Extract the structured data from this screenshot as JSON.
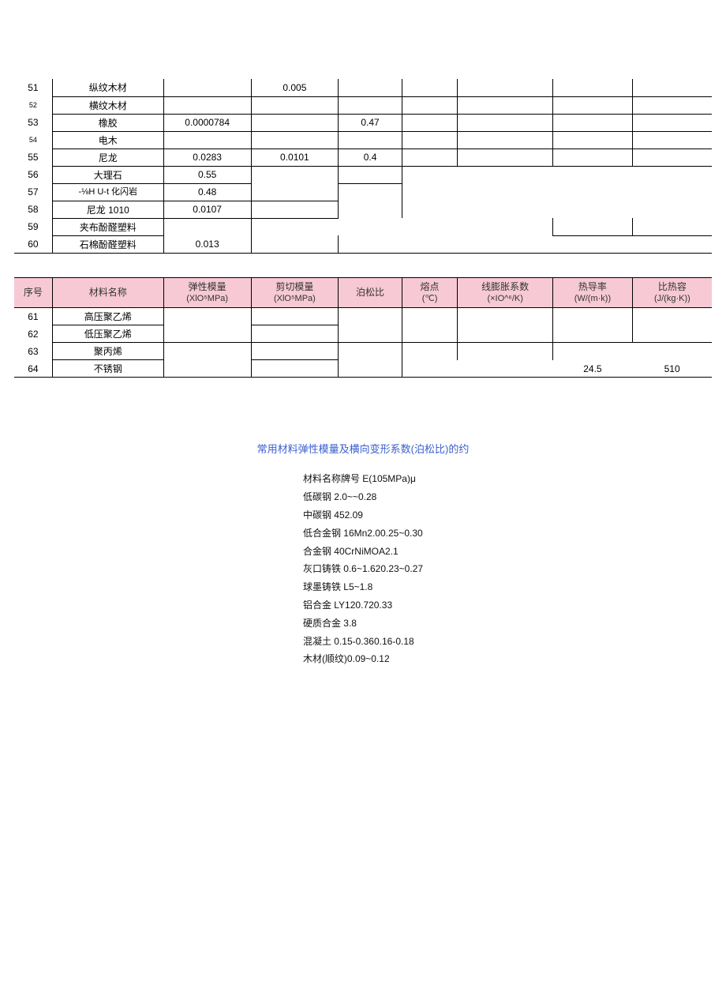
{
  "colors": {
    "header_bg": "#f6c9d4",
    "border": "#000000",
    "page_bg": "#ffffff",
    "title_color": "#3a5fcd"
  },
  "table1": {
    "rows": [
      {
        "idx": "51",
        "name": "纵纹木材",
        "e": "",
        "g": "0.005",
        "pr": "",
        "mp": "",
        "cte": "",
        "tc": "",
        "shc": ""
      },
      {
        "idx": "52",
        "name": "横纹木材",
        "e": "",
        "g": "",
        "pr": "",
        "mp": "",
        "cte": "",
        "tc": "",
        "shc": ""
      },
      {
        "idx": "53",
        "name": "橡胶",
        "e": "0.0000784",
        "g": "",
        "pr": "0.47",
        "mp": "",
        "cte": "",
        "tc": "",
        "shc": ""
      },
      {
        "idx": "54",
        "name": "电木",
        "e": "",
        "g": "",
        "pr": "",
        "mp": "",
        "cte": "",
        "tc": "",
        "shc": ""
      },
      {
        "idx": "55",
        "name": "尼龙",
        "e": "0.0283",
        "g": "0.0101",
        "pr": "0.4",
        "mp": "",
        "cte": "",
        "tc": "",
        "shc": ""
      },
      {
        "idx": "56",
        "name": "大理石",
        "e": "0.55",
        "g": "",
        "pr": "",
        "mp": "",
        "cte": "",
        "tc": "",
        "shc": ""
      },
      {
        "idx": "57",
        "name": "-⅛H U-t 化闪岩",
        "e": "0.48",
        "g": "",
        "pr": "",
        "mp": "",
        "cte": "",
        "tc": "",
        "shc": ""
      },
      {
        "idx": "58",
        "name": "尼龙 1010",
        "e": "0.0107",
        "g": "",
        "pr": "",
        "mp": "",
        "cte": "",
        "tc": "",
        "shc": ""
      },
      {
        "idx": "59",
        "name": "夹布酚醛塑料",
        "e": "",
        "g": "",
        "pr": "",
        "mp": "",
        "cte": "",
        "tc": "",
        "shc": ""
      },
      {
        "idx": "60",
        "name": "石棉酚醛塑料",
        "e": "0.013",
        "g": "",
        "pr": "",
        "mp": "",
        "cte": "",
        "tc": "",
        "shc": ""
      }
    ]
  },
  "table2": {
    "headers": {
      "idx": {
        "l1": "序号",
        "l2": ""
      },
      "name": {
        "l1": "材料名称",
        "l2": ""
      },
      "e": {
        "l1": "弹性模量",
        "l2": "(XlO⁵MPa)"
      },
      "g": {
        "l1": "剪切模量",
        "l2": "(XlO⁵MPa)"
      },
      "pr": {
        "l1": "泊松比",
        "l2": ""
      },
      "mp": {
        "l1": "熔点",
        "l2": "(℃)"
      },
      "cte": {
        "l1": "线膨胀系数",
        "l2": "(×IO^⁶/K)"
      },
      "tc": {
        "l1": "热导率",
        "l2": "(W/(m·k))"
      },
      "shc": {
        "l1": "比热容",
        "l2": "(J/(kg·K))"
      }
    },
    "rows": [
      {
        "idx": "61",
        "name": "高压聚乙烯",
        "e": "",
        "g": "",
        "pr": "",
        "mp": "",
        "cte": "",
        "tc": "",
        "shc": ""
      },
      {
        "idx": "62",
        "name": "低压聚乙烯",
        "e": "",
        "g": "",
        "pr": "",
        "mp": "",
        "cte": "",
        "tc": "",
        "shc": ""
      },
      {
        "idx": "63",
        "name": "聚丙烯",
        "e": "",
        "g": "",
        "pr": "",
        "mp": "",
        "cte": "",
        "tc": "",
        "shc": ""
      },
      {
        "idx": "64",
        "name": "不锈钢",
        "e": "",
        "g": "",
        "pr": "",
        "mp": "",
        "cte": "",
        "tc": "24.5",
        "shc": "510"
      }
    ]
  },
  "section2": {
    "title": "常用材料弹性模量及横向变形系数(泊松比)的约",
    "lines": [
      "材料名称牌号 E(105MPa)μ",
      "低碳钢 2.0~~0.28",
      "中碳钢 452.09",
      "低合金钢 16Mn2.00.25~0.30",
      "合金钢 40CrNiMOA2.1",
      "灰口铸铁 0.6~1.620.23~0.27",
      "球墨铸铁 L5~1.8",
      "铝合金 LY120.720.33",
      "硬质合金 3.8",
      "混凝土 0.15-0.360.16-0.18",
      "木材(顺纹)0.09~0.12"
    ]
  }
}
